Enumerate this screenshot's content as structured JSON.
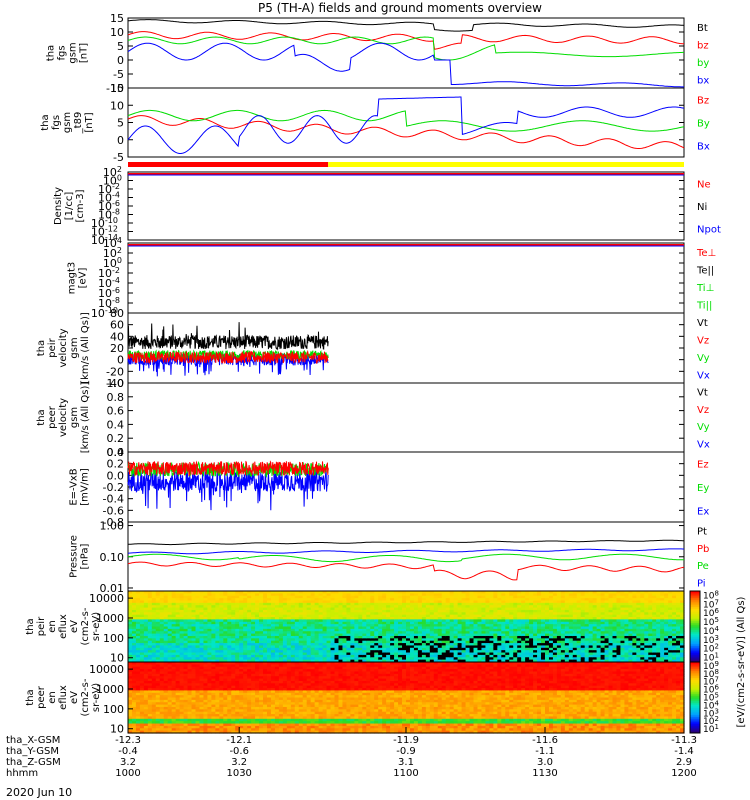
{
  "title": "P5 (TH-A) fields and ground moments overview",
  "colors": {
    "black": "#000000",
    "red": "#ff0000",
    "green": "#00dd00",
    "blue": "#0000ff",
    "yellow": "#ffff00"
  },
  "chart_data": [
    {
      "type": "line",
      "ylabel": [
        "tha",
        "fgs",
        "gsm",
        "[nT]"
      ],
      "ylim": [
        -10,
        15
      ],
      "yticks": [
        "15",
        "10",
        "5",
        "0",
        "-5",
        "-10"
      ],
      "series": [
        {
          "name": "Bt",
          "color": "black"
        },
        {
          "name": "bz",
          "color": "red"
        },
        {
          "name": "by",
          "color": "green"
        },
        {
          "name": "bx",
          "color": "blue"
        }
      ]
    },
    {
      "type": "line",
      "ylabel": [
        "tha",
        "fgs",
        "gsm",
        "_t89",
        "[nT]"
      ],
      "ylim": [
        -5,
        15
      ],
      "yticks": [
        "15",
        "10",
        "5",
        "0",
        "-5"
      ],
      "series": [
        {
          "name": "Bz",
          "color": "red"
        },
        {
          "name": "By",
          "color": "green"
        },
        {
          "name": "Bx",
          "color": "blue"
        }
      ]
    },
    {
      "type": "bar",
      "name": "mode bar",
      "segments": [
        {
          "color": "red",
          "from": 0,
          "to": 0.36
        },
        {
          "color": "yellow",
          "from": 0.36,
          "to": 1
        }
      ]
    },
    {
      "type": "line",
      "ylabel": [
        "Density",
        "[1/cc]",
        "[cm-3]"
      ],
      "scale": "log",
      "yticks": [
        "10^2",
        "10^0",
        "10^-2",
        "10^-4",
        "10^-6",
        "10^-8",
        "10^-10",
        "10^-12",
        "10^-14"
      ],
      "series": [
        {
          "name": "Ne",
          "color": "red"
        },
        {
          "name": "Ni",
          "color": "black"
        },
        {
          "name": "Npot",
          "color": "blue"
        }
      ]
    },
    {
      "type": "line",
      "ylabel": [
        "magt3",
        "[eV]"
      ],
      "scale": "log",
      "yticks": [
        "10^4",
        "10^2",
        "10^0",
        "10^-2",
        "10^-4",
        "10^-6",
        "10^-8",
        "10^-10"
      ],
      "series": [
        {
          "name": "Te⊥",
          "color": "red"
        },
        {
          "name": "Te||",
          "color": "black"
        },
        {
          "name": "Ti⊥",
          "color": "green"
        },
        {
          "name": "Ti||",
          "color": "green"
        }
      ]
    },
    {
      "type": "line",
      "ylabel": [
        "tha",
        "peir",
        "velocity",
        "gsm",
        "[km/s (All Qs)]"
      ],
      "ylim": [
        -40,
        80
      ],
      "yticks": [
        "80",
        "60",
        "40",
        "20",
        "0",
        "-20",
        "-40"
      ],
      "series": [
        {
          "name": "Vt",
          "color": "black"
        },
        {
          "name": "Vz",
          "color": "red"
        },
        {
          "name": "Vy",
          "color": "green"
        },
        {
          "name": "Vx",
          "color": "blue"
        }
      ]
    },
    {
      "type": "line",
      "ylabel": [
        "tha",
        "peer",
        "velocity",
        "gsm",
        "[km/s (All Qs)]"
      ],
      "ylim": [
        0,
        1
      ],
      "yticks": [
        "1.0",
        "0.8",
        "0.6",
        "0.4",
        "0.2",
        "0.0"
      ],
      "series": [
        {
          "name": "Vt",
          "color": "black"
        },
        {
          "name": "Vz",
          "color": "red"
        },
        {
          "name": "Vy",
          "color": "green"
        },
        {
          "name": "Vx",
          "color": "blue"
        }
      ]
    },
    {
      "type": "line",
      "ylabel": [
        "E=-VxB",
        "[mV/m]"
      ],
      "ylim": [
        -0.8,
        0.4
      ],
      "yticks": [
        "0.4",
        "0.2",
        "0.0",
        "-0.2",
        "-0.4",
        "-0.6",
        "-0.8"
      ],
      "series": [
        {
          "name": "Ez",
          "color": "red"
        },
        {
          "name": "Ey",
          "color": "green"
        },
        {
          "name": "Ex",
          "color": "blue"
        }
      ]
    },
    {
      "type": "line",
      "ylabel": [
        "Pressure",
        "[nPa]"
      ],
      "scale": "log",
      "yticks": [
        "1.00",
        "0.10",
        "0.01"
      ],
      "series": [
        {
          "name": "Pt",
          "color": "black"
        },
        {
          "name": "Pb",
          "color": "red"
        },
        {
          "name": "Pe",
          "color": "green"
        },
        {
          "name": "Pi",
          "color": "blue"
        }
      ]
    },
    {
      "type": "heatmap",
      "ylabel": [
        "tha",
        "peir",
        "en",
        "eflux",
        "eV",
        "(cm2-s-",
        "sr-eV)"
      ],
      "yticks": [
        "10000",
        "1000",
        "100",
        "10"
      ],
      "colorbar": {
        "ticks": [
          "10^8",
          "10^7",
          "10^6",
          "10^5",
          "10^4",
          "10^3",
          "10^2",
          "10^1"
        ],
        "label": "[eV/(cm2-s-sr-eV)] (All Qs)"
      }
    },
    {
      "type": "heatmap",
      "ylabel": [
        "tha",
        "peer",
        "en",
        "eflux",
        "eV",
        "(cm2-s-",
        "sr-eV)"
      ],
      "yticks": [
        "10000",
        "1000",
        "100",
        "10"
      ],
      "colorbar": {
        "ticks": [
          "10^9",
          "10^8",
          "10^7",
          "10^6",
          "10^5",
          "10^4",
          "10^3",
          "10^2",
          "10^1"
        ],
        "label": "[eV/(cm2-s-sr-eV)] (All Qs)"
      }
    }
  ],
  "xaxis": {
    "rows": [
      {
        "label": "tha_X-GSM",
        "values": [
          "-12.3",
          "-12.1",
          "-11.9",
          "-11.6",
          "-11.3"
        ]
      },
      {
        "label": "tha_Y-GSM",
        "values": [
          "-0.4",
          "-0.6",
          "-0.9",
          "-1.1",
          "-1.4"
        ]
      },
      {
        "label": "tha_Z-GSM",
        "values": [
          "3.2",
          "3.2",
          "3.1",
          "3.0",
          "2.9"
        ]
      },
      {
        "label": "hhmm",
        "values": [
          "1000",
          "1030",
          "1100",
          "1130",
          "1200"
        ]
      }
    ],
    "date": "2020 Jun 10"
  }
}
